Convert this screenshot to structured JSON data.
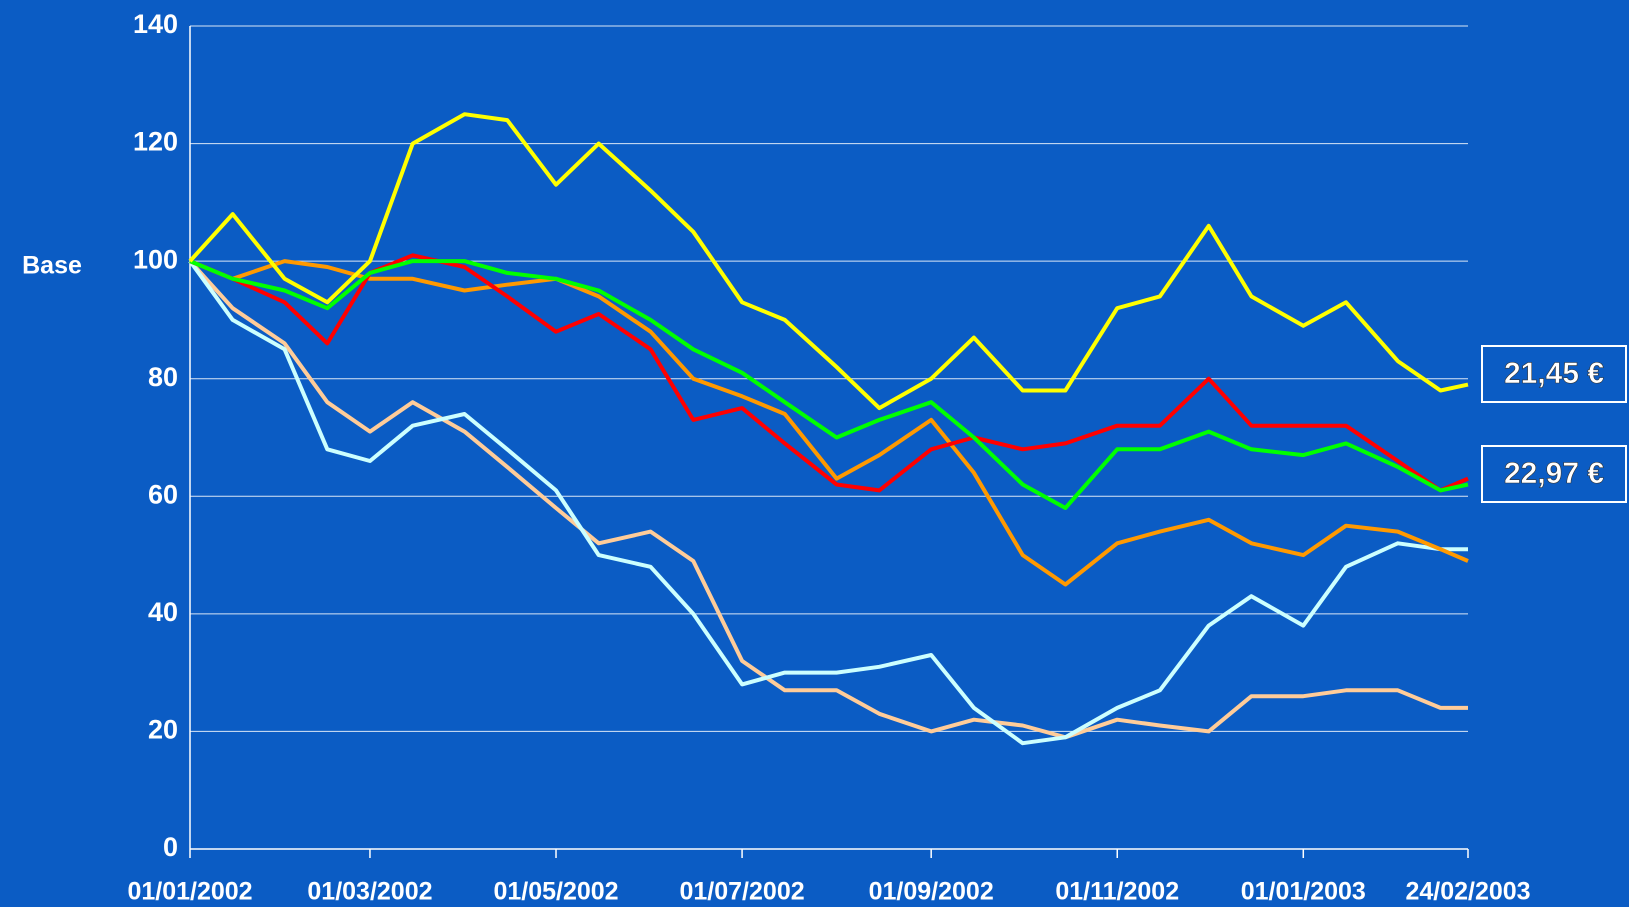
{
  "chart_data": {
    "type": "line",
    "ylabel": "Base",
    "x": [
      "01/01/2002",
      "15/01/2002",
      "01/02/2002",
      "15/02/2002",
      "01/03/2002",
      "15/03/2002",
      "01/04/2002",
      "15/04/2002",
      "01/05/2002",
      "15/05/2002",
      "01/06/2002",
      "15/06/2002",
      "01/07/2002",
      "15/07/2002",
      "01/08/2002",
      "15/08/2002",
      "01/09/2002",
      "15/09/2002",
      "01/10/2002",
      "15/10/2002",
      "01/11/2002",
      "15/11/2002",
      "01/12/2002",
      "15/12/2002",
      "01/01/2003",
      "15/01/2003",
      "01/02/2003",
      "15/02/2003",
      "24/02/2003"
    ],
    "series": [
      {
        "color": "#ffcc99",
        "values": [
          100,
          92,
          86,
          76,
          71,
          76,
          71,
          65,
          58,
          52,
          54,
          49,
          32,
          27,
          27,
          23,
          20,
          22,
          21,
          19,
          22,
          21,
          20,
          26,
          26,
          27,
          27,
          24,
          24
        ]
      },
      {
        "color": "#ccffff",
        "values": [
          100,
          90,
          85,
          68,
          66,
          72,
          74,
          68,
          61,
          50,
          48,
          40,
          28,
          30,
          30,
          31,
          33,
          24,
          18,
          19,
          24,
          27,
          38,
          43,
          38,
          48,
          52,
          51,
          51
        ]
      },
      {
        "color": "#ff9900",
        "values": [
          100,
          97,
          100,
          99,
          97,
          97,
          95,
          96,
          97,
          94,
          88,
          80,
          77,
          74,
          63,
          67,
          73,
          64,
          50,
          45,
          52,
          54,
          56,
          52,
          50,
          55,
          54,
          51,
          49
        ]
      },
      {
        "color": "#ff0000",
        "values": [
          100,
          97,
          93,
          86,
          98,
          101,
          99,
          94,
          88,
          91,
          85,
          73,
          75,
          69,
          62,
          61,
          68,
          70,
          68,
          69,
          72,
          72,
          80,
          72,
          72,
          72,
          66,
          61,
          63
        ]
      },
      {
        "color": "#00ff00",
        "values": [
          100,
          97,
          95,
          92,
          98,
          100,
          100,
          98,
          97,
          95,
          90,
          85,
          81,
          76,
          70,
          73,
          76,
          70,
          62,
          58,
          68,
          68,
          71,
          68,
          67,
          69,
          65,
          61,
          62
        ]
      },
      {
        "color": "#ffff00",
        "values": [
          100,
          108,
          97,
          93,
          100,
          120,
          125,
          124,
          113,
          120,
          112,
          105,
          93,
          90,
          82,
          75,
          80,
          87,
          78,
          78,
          92,
          94,
          106,
          94,
          89,
          93,
          83,
          78,
          79
        ]
      }
    ],
    "xlim": [
      "01/01/2002",
      "24/02/2003"
    ],
    "xticks": [
      "01/01/2002",
      "01/03/2002",
      "01/05/2002",
      "01/07/2002",
      "01/09/2002",
      "01/11/2002",
      "01/01/2003",
      "24/02/2003"
    ],
    "ylim": [
      0,
      140
    ],
    "yticks": [
      0,
      20,
      40,
      60,
      80,
      100,
      120,
      140
    ],
    "grid": true,
    "annotations": [
      {
        "text": "21,45 €",
        "color": "#ffff00"
      },
      {
        "text": "22,97 €",
        "color": "#ff2a00"
      }
    ]
  }
}
